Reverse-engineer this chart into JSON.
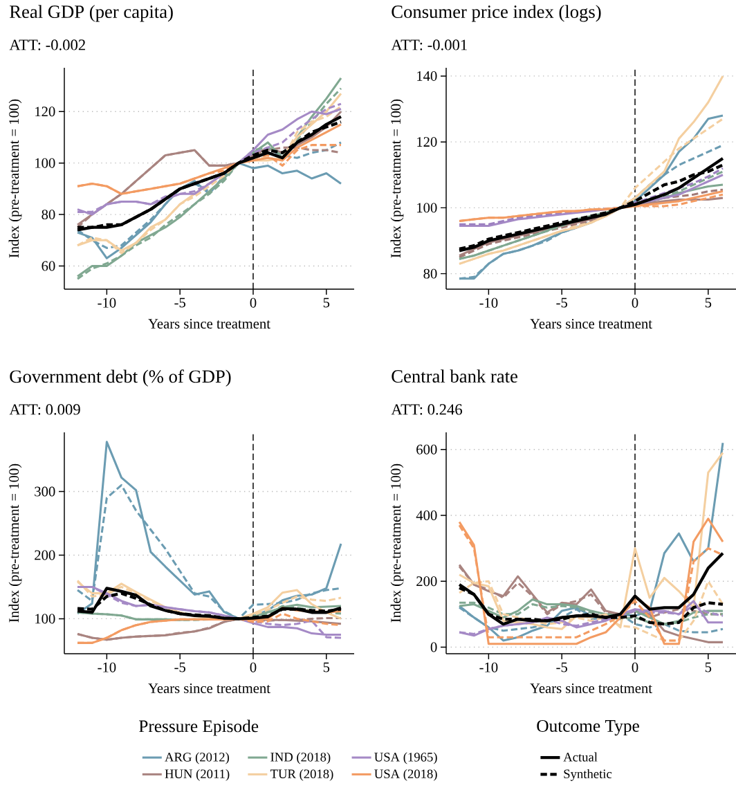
{
  "chart_data": [
    {
      "type": "line",
      "title": "Real GDP (per capita)",
      "subtitle": "ATT: -0.002",
      "xlabel": "Years since treatment",
      "ylabel": "Index (pre-treatment = 100)",
      "x": [
        -12,
        -11,
        -10,
        -9,
        -8,
        -7,
        -6,
        -5,
        -4,
        -3,
        -2,
        -1,
        0,
        1,
        2,
        3,
        4,
        5,
        6
      ],
      "xlim": [
        -12.9,
        6.9
      ],
      "ylim": [
        51,
        137
      ],
      "xticks": [
        -10,
        -5,
        0,
        5
      ],
      "yticks": [
        60,
        80,
        100,
        120
      ],
      "grid": "y",
      "ref_lines": [
        {
          "axis": "x",
          "value": 0,
          "color": "#000000",
          "line_style": "dashed"
        }
      ],
      "series": [
        {
          "color": "#6b9cb2",
          "line_style": "solid",
          "values": [
            73,
            71,
            63,
            67,
            72,
            77,
            84,
            90,
            93,
            88,
            95,
            100,
            98,
            99,
            96,
            97,
            94,
            96,
            92
          ]
        },
        {
          "color": "#6b9cb2",
          "line_style": "dashed",
          "values": [
            74,
            70,
            67,
            68,
            73,
            78,
            84,
            90,
            92,
            89,
            94,
            100,
            103,
            104,
            103,
            102,
            104,
            105,
            108
          ]
        },
        {
          "color": "#a98480",
          "line_style": "solid",
          "values": [
            76,
            80,
            84,
            88,
            93,
            98,
            103,
            104,
            105,
            99,
            99,
            100,
            103,
            106,
            104,
            107,
            110,
            114,
            120
          ]
        },
        {
          "color": "#a98480",
          "line_style": "dashed",
          "values": [
            75,
            80,
            84,
            88,
            93,
            98,
            103,
            104,
            105,
            99,
            99,
            100,
            103,
            105,
            106,
            106,
            105,
            105,
            104
          ]
        },
        {
          "color": "#80a891",
          "line_style": "solid",
          "values": [
            56,
            60,
            60,
            64,
            69,
            72,
            75,
            79,
            84,
            89,
            94,
            100,
            104,
            108,
            102,
            110,
            118,
            125,
            133
          ]
        },
        {
          "color": "#80a891",
          "line_style": "dashed",
          "values": [
            55,
            59,
            61,
            64,
            68,
            71,
            76,
            80,
            84,
            88,
            93,
            100,
            105,
            106,
            103,
            109,
            116,
            123,
            129
          ]
        },
        {
          "color": "#f4cfa0",
          "line_style": "solid",
          "values": [
            68,
            70,
            70,
            66,
            69,
            75,
            78,
            84,
            88,
            92,
            96,
            100,
            101,
            101,
            102,
            110,
            115,
            120,
            127
          ]
        },
        {
          "color": "#f4cfa0",
          "line_style": "dashed",
          "values": [
            68,
            71,
            70,
            65,
            69,
            74,
            78,
            84,
            87,
            91,
            95,
            100,
            102,
            102,
            101,
            112,
            116,
            118,
            122
          ]
        },
        {
          "color": "#a58ac6",
          "line_style": "solid",
          "values": [
            82,
            80,
            84,
            85,
            85,
            84,
            86,
            88,
            88,
            92,
            96,
            100,
            105,
            111,
            113,
            117,
            120,
            119,
            121
          ]
        },
        {
          "color": "#a58ac6",
          "line_style": "dashed",
          "values": [
            81,
            81,
            84,
            85,
            85,
            84,
            87,
            88,
            89,
            92,
            96,
            100,
            104,
            106,
            108,
            113,
            117,
            121,
            123
          ]
        },
        {
          "color": "#f39b62",
          "line_style": "solid",
          "values": [
            91,
            92,
            91,
            88,
            89,
            90,
            91,
            92,
            94,
            96,
            98,
            100,
            101,
            102,
            101,
            106,
            109,
            112,
            115
          ]
        },
        {
          "color": "#f39b62",
          "line_style": "dashed",
          "values": [
            91,
            92,
            91,
            88,
            89,
            90,
            91,
            92,
            94,
            96,
            97,
            100,
            102,
            103,
            99,
            105,
            107,
            107,
            107
          ]
        },
        {
          "color": "#000000",
          "line_style": "solid",
          "values": [
            74,
            75,
            75,
            76,
            79,
            82,
            86,
            90,
            92,
            94,
            96,
            100,
            102,
            104,
            102,
            108,
            111,
            115,
            118
          ]
        },
        {
          "color": "#000000",
          "line_style": "dashed",
          "values": [
            75,
            75,
            76,
            76,
            79,
            82,
            86,
            90,
            92,
            94,
            96,
            100,
            103,
            105,
            104,
            108,
            112,
            114,
            116
          ]
        }
      ]
    },
    {
      "type": "line",
      "title": "Consumer price index (logs)",
      "subtitle": "ATT: -0.001",
      "xlabel": "Years since treatment",
      "ylabel": "Index (pre-treatment = 100)",
      "x": [
        -12,
        -11,
        -10,
        -9,
        -8,
        -7,
        -6,
        -5,
        -4,
        -3,
        -2,
        -1,
        0,
        1,
        2,
        3,
        4,
        5,
        6
      ],
      "xlim": [
        -12.9,
        6.9
      ],
      "ylim": [
        75.3,
        142.5
      ],
      "xticks": [
        -10,
        -5,
        0,
        5
      ],
      "yticks": [
        80,
        100,
        120,
        140
      ],
      "grid": "y",
      "ref_lines": [
        {
          "axis": "x",
          "value": 0,
          "color": "#000000",
          "line_style": "dashed"
        }
      ],
      "series": [
        {
          "color": "#6b9cb2",
          "line_style": "solid",
          "values": [
            78.5,
            78.5,
            83,
            86,
            87,
            88.5,
            90.5,
            92.5,
            94,
            95.5,
            98,
            100,
            102,
            106,
            110,
            117,
            121,
            127,
            128
          ]
        },
        {
          "color": "#6b9cb2",
          "line_style": "dashed",
          "values": [
            78.5,
            79,
            83,
            86,
            87,
            88.5,
            90,
            92.5,
            94,
            96,
            98,
            100,
            103,
            107,
            110,
            113,
            115,
            117,
            119
          ]
        },
        {
          "color": "#a98480",
          "line_style": "solid",
          "values": [
            85.5,
            87.5,
            89.5,
            90.5,
            91.5,
            92.5,
            93.5,
            94.5,
            95.5,
            96.5,
            97.5,
            100,
            101,
            101.5,
            102,
            102.5,
            102.5,
            102.5,
            103
          ]
        },
        {
          "color": "#a27b77",
          "line_style": "dashed",
          "values": [
            85,
            87,
            89,
            90,
            91,
            92,
            93,
            94,
            95,
            96,
            97.5,
            100,
            101,
            102,
            103,
            103.5,
            104,
            105,
            105.5
          ]
        },
        {
          "color": "#80a891",
          "line_style": "solid",
          "values": [
            84.5,
            85.5,
            87,
            88.5,
            90,
            91.5,
            93,
            95,
            96.5,
            97.5,
            98.5,
            100,
            101,
            102,
            103,
            104.5,
            105.5,
            106.5,
            107
          ]
        },
        {
          "color": "#80a891",
          "line_style": "dashed",
          "values": [
            84.5,
            85.5,
            87,
            88.5,
            90,
            91.5,
            93,
            94.5,
            96,
            97.5,
            98.5,
            100,
            101.5,
            102.5,
            103.5,
            105,
            107,
            109,
            111
          ]
        },
        {
          "color": "#f4cfa0",
          "line_style": "solid",
          "values": [
            83,
            84.5,
            86,
            87,
            88.5,
            90,
            91.5,
            93,
            94,
            95.5,
            97.5,
            100,
            103,
            107,
            111,
            121,
            126,
            132,
            140
          ]
        },
        {
          "color": "#f4cfa0",
          "line_style": "dashed",
          "values": [
            83,
            84.5,
            86,
            87,
            88.5,
            90,
            91.5,
            93,
            94.5,
            95.5,
            97.5,
            100,
            106,
            110,
            114,
            118,
            121,
            124,
            127
          ]
        },
        {
          "color": "#a58ac6",
          "line_style": "solid",
          "values": [
            94.5,
            94.5,
            94.5,
            95.5,
            96.5,
            97,
            97.5,
            98,
            98.5,
            99,
            99.5,
            100,
            101,
            102,
            103,
            104,
            106,
            108,
            110
          ]
        },
        {
          "color": "#9d80c0",
          "line_style": "dashed",
          "values": [
            95,
            95,
            95,
            96,
            97,
            97.5,
            98,
            98.5,
            99,
            99.3,
            99.7,
            100,
            101.5,
            103,
            104.5,
            106,
            107.5,
            109.5,
            112
          ]
        },
        {
          "color": "#f39b62",
          "line_style": "solid",
          "values": [
            96,
            96.5,
            97,
            97,
            97.5,
            98,
            98.5,
            99,
            99,
            99.5,
            99.5,
            100,
            100.5,
            101,
            101.5,
            102,
            103,
            104,
            105
          ]
        },
        {
          "color": "#f39b62",
          "line_style": "dashed",
          "values": [
            96,
            96.5,
            97,
            97,
            97.5,
            98,
            98.5,
            98.8,
            99,
            99.5,
            99.7,
            100,
            100.5,
            100.5,
            100.5,
            101,
            102,
            103,
            104
          ]
        },
        {
          "color": "#000000",
          "line_style": "solid",
          "values": [
            87,
            88,
            90,
            91,
            92,
            93,
            94,
            95,
            96,
            97,
            98,
            100,
            101,
            102.5,
            104,
            106,
            109,
            112,
            115
          ]
        },
        {
          "color": "#000000",
          "line_style": "dashed",
          "values": [
            87.5,
            88.5,
            90.5,
            91.5,
            92.5,
            93.5,
            94.5,
            95.5,
            96.5,
            97.5,
            98.5,
            100,
            102,
            104.5,
            107,
            108,
            110,
            111,
            113
          ]
        }
      ]
    },
    {
      "type": "line",
      "title": "Government debt (% of GDP)",
      "subtitle": "ATT: 0.009",
      "xlabel": "Years since treatment",
      "ylabel": "Index (pre-treatment = 100)",
      "x": [
        -12,
        -11,
        -10,
        -9,
        -8,
        -7,
        -6,
        -5,
        -4,
        -3,
        -2,
        -1,
        0,
        1,
        2,
        3,
        4,
        5,
        6
      ],
      "xlim": [
        -12.9,
        6.9
      ],
      "ylim": [
        45,
        393
      ],
      "xticks": [
        -10,
        -5,
        0,
        5
      ],
      "yticks": [
        100,
        200,
        300
      ],
      "grid": "y",
      "legend": "bottom",
      "legend_title": "Pressure Episode",
      "ref_lines": [
        {
          "axis": "x",
          "value": 0,
          "color": "#000000",
          "line_style": "dashed"
        }
      ],
      "series": [
        {
          "name": "ARG (2012)",
          "color": "#6b9cb2",
          "line_style": "solid",
          "values": [
            108,
            124,
            378,
            322,
            302,
            205,
            182,
            160,
            138,
            143,
            111,
            100,
            104,
            113,
            129,
            136,
            138,
            148,
            218
          ]
        },
        {
          "color": "#6b9cb2",
          "line_style": "dashed",
          "values": [
            145,
            128,
            290,
            310,
            270,
            240,
            210,
            175,
            140,
            135,
            112,
            100,
            122,
            123,
            125,
            130,
            140,
            145,
            148
          ]
        },
        {
          "name": "HUN (2011)",
          "color": "#a98480",
          "line_style": "solid",
          "values": [
            76,
            70,
            67,
            70,
            72,
            73,
            74,
            77,
            80,
            85,
            95,
            100,
            99,
            98,
            98,
            97,
            96,
            94,
            92
          ]
        },
        {
          "color": "#a98480",
          "line_style": "dashed",
          "values": [
            76,
            70,
            67,
            70,
            72,
            73,
            74,
            78,
            80,
            86,
            95,
            100,
            98,
            97,
            98,
            98,
            100,
            101,
            101
          ]
        },
        {
          "name": "IND (2018)",
          "color": "#80a891",
          "line_style": "solid",
          "values": [
            110,
            108,
            107,
            105,
            99,
            99,
            99,
            98,
            99,
            99,
            100,
            100,
            104,
            110,
            118,
            122,
            118,
            119,
            120
          ]
        },
        {
          "color": "#80a891",
          "line_style": "dashed",
          "values": [
            110,
            108,
            107,
            105,
            99,
            99,
            99,
            98,
            98,
            99,
            100,
            100,
            103,
            108,
            120,
            118,
            112,
            110,
            108
          ]
        },
        {
          "name": "TUR (2018)",
          "color": "#f4cfa0",
          "line_style": "solid",
          "values": [
            158,
            140,
            140,
            155,
            142,
            130,
            118,
            110,
            104,
            102,
            100,
            100,
            108,
            118,
            141,
            145,
            123,
            110,
            100
          ]
        },
        {
          "color": "#f4cfa0",
          "line_style": "dashed",
          "values": [
            160,
            135,
            138,
            150,
            140,
            128,
            118,
            110,
            104,
            102,
            100,
            100,
            106,
            114,
            125,
            135,
            130,
            128,
            133
          ]
        },
        {
          "name": "USA (1965)",
          "color": "#a58ac6",
          "line_style": "solid",
          "values": [
            150,
            150,
            140,
            128,
            120,
            122,
            118,
            115,
            112,
            110,
            105,
            100,
            93,
            87,
            87,
            85,
            77,
            75,
            75
          ]
        },
        {
          "color": "#a58ac6",
          "line_style": "dashed",
          "values": [
            150,
            150,
            138,
            125,
            120,
            122,
            118,
            115,
            112,
            110,
            105,
            100,
            96,
            92,
            90,
            92,
            97,
            71,
            70
          ]
        },
        {
          "name": "USA (2018)",
          "color": "#f39b62",
          "line_style": "solid",
          "values": [
            62,
            62,
            70,
            82,
            90,
            95,
            97,
            99,
            99,
            99,
            99,
            100,
            98,
            100,
            117,
            113,
            112,
            110,
            112
          ]
        },
        {
          "color": "#f39b62",
          "line_style": "dashed",
          "values": [
            62,
            62,
            70,
            82,
            90,
            95,
            97,
            99,
            99,
            99,
            99,
            100,
            95,
            96,
            108,
            100,
            96,
            92,
            90
          ]
        },
        {
          "color": "#000000",
          "line_style": "solid",
          "values": [
            112,
            110,
            148,
            143,
            137,
            120,
            113,
            108,
            105,
            104,
            101,
            100,
            101,
            103,
            116,
            115,
            110,
            110,
            117
          ]
        },
        {
          "color": "#000000",
          "line_style": "dashed",
          "values": [
            116,
            115,
            135,
            140,
            132,
            122,
            113,
            108,
            106,
            105,
            101,
            100,
            102,
            104,
            115,
            115,
            113,
            112,
            115
          ]
        }
      ]
    },
    {
      "type": "line",
      "title": "Central bank rate",
      "subtitle": "ATT: 0.246",
      "xlabel": "Years since treatment",
      "ylabel": "Index (pre-treatment = 100)",
      "x": [
        -12,
        -11,
        -10,
        -9,
        -8,
        -7,
        -6,
        -5,
        -4,
        -3,
        -2,
        -1,
        0,
        1,
        2,
        3,
        4,
        5,
        6
      ],
      "xlim": [
        -12.9,
        6.9
      ],
      "ylim": [
        -20,
        652
      ],
      "xticks": [
        -10,
        -5,
        0,
        5
      ],
      "yticks": [
        0,
        200,
        400,
        600
      ],
      "grid": "y",
      "legend": "bottom",
      "legend_title": "Outcome Type",
      "ref_lines": [
        {
          "axis": "x",
          "value": 0,
          "color": "#000000",
          "line_style": "dashed"
        }
      ],
      "series": [
        {
          "color": "#6b9cb2",
          "line_style": "solid",
          "values": [
            125,
            90,
            60,
            20,
            30,
            50,
            65,
            110,
            120,
            95,
            90,
            100,
            95,
            110,
            285,
            345,
            260,
            300,
            620
          ]
        },
        {
          "color": "#6b9cb2",
          "line_style": "dashed",
          "values": [
            120,
            90,
            60,
            50,
            55,
            60,
            70,
            90,
            115,
            85,
            90,
            100,
            70,
            60,
            70,
            50,
            45,
            45,
            55
          ]
        },
        {
          "color": "#a98480",
          "line_style": "solid",
          "values": [
            250,
            190,
            170,
            155,
            215,
            160,
            105,
            135,
            130,
            175,
            110,
            100,
            110,
            100,
            50,
            35,
            25,
            15,
            15
          ]
        },
        {
          "color": "#a98480",
          "line_style": "dashed",
          "values": [
            245,
            190,
            175,
            150,
            195,
            155,
            100,
            130,
            140,
            160,
            105,
            95,
            110,
            90,
            105,
            115,
            110,
            100,
            100
          ]
        },
        {
          "color": "#80a891",
          "line_style": "solid",
          "values": [
            125,
            130,
            110,
            90,
            110,
            145,
            130,
            130,
            125,
            110,
            100,
            95,
            110,
            90,
            70,
            80,
            105,
            110,
            110
          ]
        },
        {
          "color": "#80a891",
          "line_style": "dashed",
          "values": [
            135,
            135,
            120,
            100,
            100,
            130,
            120,
            125,
            120,
            105,
            90,
            85,
            90,
            75,
            70,
            75,
            90,
            100,
            100
          ]
        },
        {
          "color": "#f4cfa0",
          "line_style": "solid",
          "values": [
            220,
            195,
            185,
            80,
            75,
            70,
            60,
            55,
            95,
            90,
            100,
            60,
            300,
            150,
            210,
            170,
            120,
            530,
            590
          ]
        },
        {
          "color": "#f4cfa0",
          "line_style": "dashed",
          "values": [
            165,
            195,
            200,
            100,
            90,
            80,
            70,
            75,
            90,
            80,
            90,
            65,
            60,
            40,
            20,
            20,
            80,
            200,
            130
          ]
        },
        {
          "color": "#a58ac6",
          "line_style": "solid",
          "values": [
            45,
            35,
            55,
            65,
            70,
            75,
            90,
            80,
            60,
            70,
            80,
            100,
            115,
            110,
            110,
            100,
            140,
            75,
            75
          ]
        },
        {
          "color": "#a58ac6",
          "line_style": "dashed",
          "values": [
            45,
            40,
            55,
            65,
            70,
            75,
            85,
            70,
            65,
            75,
            85,
            95,
            110,
            105,
            105,
            100,
            125,
            105,
            95
          ]
        },
        {
          "color": "#f39b62",
          "line_style": "solid",
          "values": [
            380,
            310,
            10,
            10,
            10,
            10,
            10,
            10,
            10,
            30,
            45,
            90,
            150,
            120,
            10,
            10,
            320,
            390,
            320
          ]
        },
        {
          "color": "#f39b62",
          "line_style": "dashed",
          "values": [
            370,
            300,
            30,
            30,
            30,
            30,
            30,
            30,
            30,
            50,
            70,
            95,
            140,
            90,
            20,
            20,
            260,
            300,
            280
          ]
        },
        {
          "name": "Actual",
          "color": "#000000",
          "line_style": "solid",
          "values": [
            190,
            160,
            100,
            70,
            85,
            80,
            80,
            90,
            95,
            95,
            90,
            100,
            155,
            115,
            120,
            120,
            160,
            240,
            285
          ]
        },
        {
          "name": "Synthetic",
          "color": "#000000",
          "line_style": "dashed",
          "values": [
            180,
            160,
            100,
            85,
            85,
            85,
            80,
            85,
            95,
            100,
            90,
            90,
            95,
            75,
            70,
            75,
            120,
            135,
            130
          ]
        }
      ]
    }
  ]
}
